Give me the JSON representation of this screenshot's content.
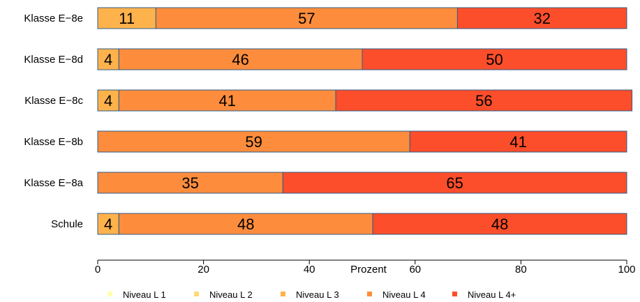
{
  "chart_data": {
    "type": "bar",
    "orientation": "horizontal",
    "stacked": true,
    "categories": [
      "Klasse  E−8e",
      "Klasse  E−8d",
      "Klasse  E−8c",
      "Klasse  E−8b",
      "Klasse  E−8a",
      "Schule"
    ],
    "series": [
      {
        "name": "Niveau L 1",
        "color": "#FFFFB2",
        "values": [
          0,
          0,
          0,
          0,
          0,
          0
        ]
      },
      {
        "name": "Niveau L 2",
        "color": "#FED976",
        "values": [
          0,
          0,
          0,
          0,
          0,
          0
        ]
      },
      {
        "name": "Niveau L 3",
        "color": "#FEB24C",
        "values": [
          11,
          4,
          4,
          0,
          0,
          4
        ]
      },
      {
        "name": "Niveau L 4",
        "color": "#FD8D3C",
        "values": [
          57,
          46,
          41,
          59,
          35,
          48
        ]
      },
      {
        "name": "Niveau L 4+",
        "color": "#FC4E2A",
        "values": [
          32,
          50,
          56,
          41,
          65,
          48
        ]
      }
    ],
    "xlabel": "Prozent",
    "xlim": [
      0,
      100
    ],
    "xticks": [
      0,
      20,
      40,
      60,
      80,
      100
    ],
    "grid": false,
    "legend_position": "bottom",
    "bar_border_color": "#2F5C8A"
  }
}
